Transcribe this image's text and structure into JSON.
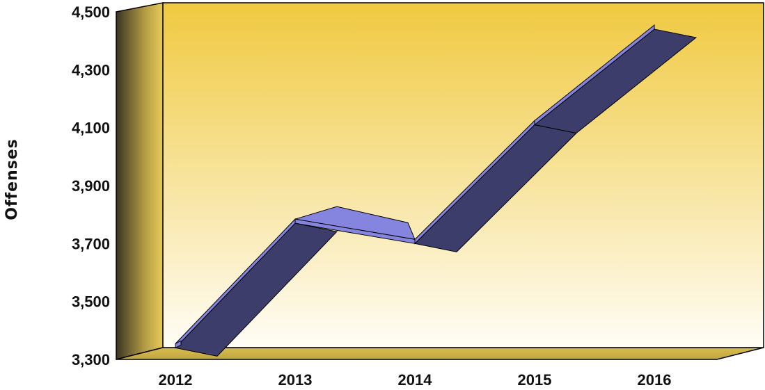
{
  "chart_data": {
    "type": "line",
    "style": "3d-ribbon",
    "title": "",
    "xlabel": "",
    "ylabel": "Offenses",
    "categories": [
      "2012",
      "2013",
      "2014",
      "2015",
      "2016"
    ],
    "series": [
      {
        "values": [
          3340,
          3770,
          3700,
          4110,
          4440
        ]
      }
    ],
    "ylim": [
      3300,
      4500
    ],
    "yticks": [
      "3,300",
      "3,500",
      "3,700",
      "3,900",
      "4,100",
      "4,300",
      "4,500"
    ],
    "grid": false,
    "legend": "none",
    "colors": {
      "ribbon_top": "#8585e0",
      "ribbon_side": "#3d3d6b",
      "background_top": "#f0c940",
      "background_bottom": "#ffffff",
      "wall_dark": "#5a5030",
      "wall_light": "#e0c350"
    }
  }
}
